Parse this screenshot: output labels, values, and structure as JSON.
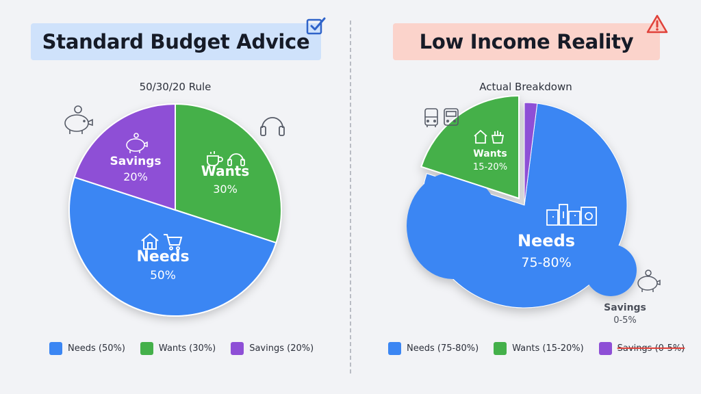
{
  "chart_data": [
    {
      "type": "pie",
      "title": "Standard Budget Advice",
      "subtitle": "50/30/20 Rule",
      "categories": [
        "Needs",
        "Wants",
        "Savings"
      ],
      "values": [
        50,
        30,
        20
      ],
      "slice_labels": [
        {
          "name": "Needs",
          "value": "50%"
        },
        {
          "name": "Wants",
          "value": "30%"
        },
        {
          "name": "Savings",
          "value": "20%"
        }
      ],
      "colors": [
        "#3b86f3",
        "#44b04a",
        "#8e4fd6"
      ],
      "legend": [
        "Needs (50%)",
        "Wants (30%)",
        "Savings (20%)"
      ],
      "legend_position": "bottom",
      "status_icon": "checkbox-check-icon"
    },
    {
      "type": "pie",
      "title": "Low Income Reality",
      "subtitle": "Actual Breakdown",
      "categories": [
        "Needs",
        "Wants",
        "Savings"
      ],
      "values": [
        78,
        20,
        2
      ],
      "slice_labels": [
        {
          "name": "Needs",
          "value": "75-80%"
        },
        {
          "name": "Wants",
          "value": "15-20%"
        },
        {
          "name": "Savings",
          "value": "0-5%"
        }
      ],
      "colors": [
        "#3b86f3",
        "#44b04a",
        "#8e4fd6"
      ],
      "legend": [
        "Needs (75-80%)",
        "Wants (15-20%)",
        "Savings (0-5%)"
      ],
      "legend_struck": [
        false,
        false,
        true
      ],
      "legend_position": "bottom",
      "status_icon": "warning-triangle-icon"
    }
  ],
  "icons": {
    "left": [
      "piggy-bank-icon",
      "headphones-icon",
      "coffee-cup-icon",
      "house-icon",
      "shopping-cart-icon"
    ],
    "right": [
      "bus-icon",
      "train-icon",
      "piggy-bank-icon",
      "house-icon",
      "groceries-icon"
    ]
  }
}
